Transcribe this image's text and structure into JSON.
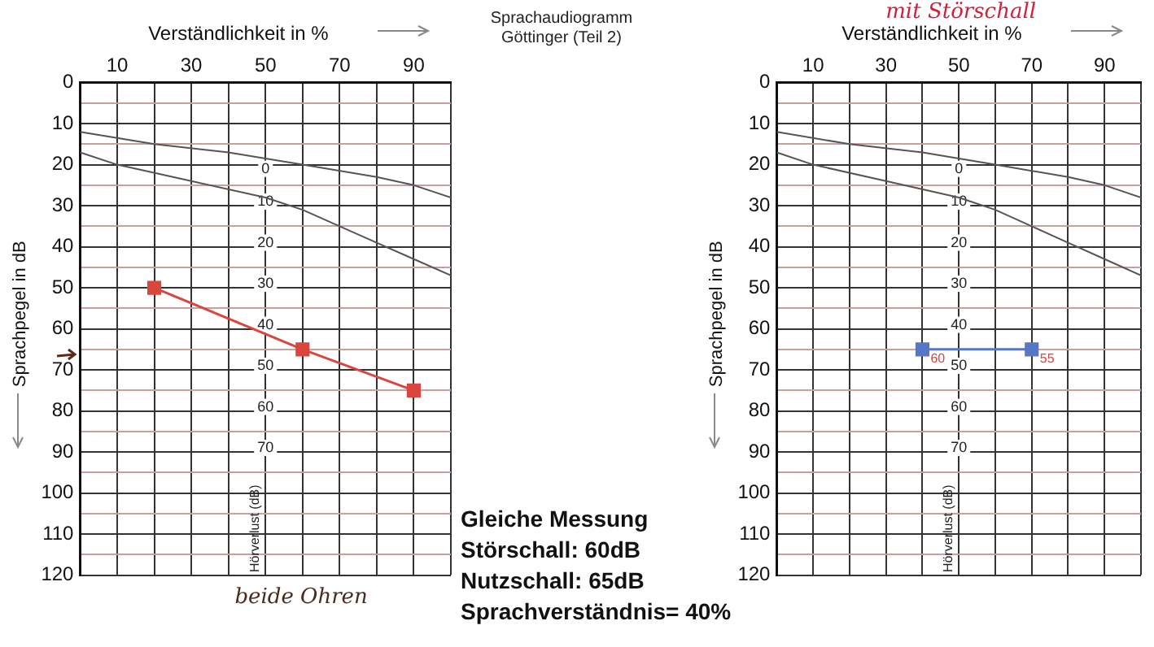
{
  "chart_data": [
    {
      "type": "line",
      "xlabel": "Verständlichkeit in %",
      "ylabel": "Sprachpegel in dB",
      "series": [
        {
          "color": "#555555",
          "marker": "none",
          "x": [
            0,
            20,
            40,
            60,
            80,
            90,
            100
          ],
          "values": [
            12,
            15,
            17,
            20,
            23,
            25,
            28
          ]
        },
        {
          "color": "#555555",
          "marker": "none",
          "x": [
            0,
            10,
            30,
            50,
            60,
            70,
            80,
            90,
            100
          ],
          "values": [
            17,
            20,
            24,
            28,
            31,
            35,
            39,
            43,
            47
          ]
        },
        {
          "color": "#d9463e",
          "x": [
            20,
            60,
            90
          ],
          "values": [
            50,
            65,
            75
          ]
        }
      ],
      "xlim": [
        0,
        100
      ],
      "xticks": [
        {
          "value": 0,
          "label": null
        },
        10,
        {
          "value": 20,
          "label": null
        },
        30,
        {
          "value": 40,
          "label": null
        },
        50,
        {
          "value": 60,
          "label": null
        },
        70,
        {
          "value": 80,
          "label": null
        },
        90,
        {
          "value": 100,
          "label": null
        }
      ],
      "ylim": [
        120,
        0
      ],
      "yticks": [
        0,
        {
          "value": 5,
          "label": null
        },
        10,
        {
          "value": 15,
          "label": null
        },
        20,
        {
          "value": 25,
          "label": null
        },
        30,
        {
          "value": 35,
          "label": null
        },
        40,
        {
          "value": 45,
          "label": null
        },
        50,
        {
          "value": 55,
          "label": null
        },
        60,
        {
          "value": 65,
          "label": null
        },
        70,
        {
          "value": 75,
          "label": null
        },
        80,
        {
          "value": 85,
          "label": null
        },
        90,
        {
          "value": 95,
          "label": null
        },
        100,
        {
          "value": 105,
          "label": null
        },
        110,
        {
          "value": 115,
          "label": null
        },
        120
      ],
      "grid": true,
      "legend": false,
      "marker": "square",
      "line_style": "solid",
      "annotations": [
        {
          "text": "0",
          "x": 50,
          "y": 21
        },
        {
          "text": "10",
          "x": 50,
          "y": 29
        },
        {
          "text": "20",
          "x": 50,
          "y": 39
        },
        {
          "text": "30",
          "x": 50,
          "y": 49
        },
        {
          "text": "40",
          "x": 50,
          "y": 59
        },
        {
          "text": "50",
          "x": 50,
          "y": 69
        },
        {
          "text": "60",
          "x": 50,
          "y": 79
        },
        {
          "text": "70",
          "x": 50,
          "y": 89
        },
        "Hörverlust (dB)",
        "beide Ohren",
        "Sprachaudiogramm\nGöttinger (Teil 2)",
        "Gleiche Messung",
        "Störschall: 60dB",
        "Nutzschall: 65dB",
        "Sprachverständnis= 40%"
      ]
    },
    {
      "type": "line",
      "xlabel": "Verständlichkeit in %",
      "ylabel": "Sprachpegel in dB",
      "series": [
        {
          "color": "#555555",
          "marker": "none",
          "x": [
            0,
            20,
            40,
            60,
            80,
            90,
            100
          ],
          "values": [
            12,
            15,
            17,
            20,
            23,
            25,
            28
          ]
        },
        {
          "color": "#555555",
          "marker": "none",
          "x": [
            0,
            10,
            30,
            50,
            60,
            70,
            80,
            90,
            100
          ],
          "values": [
            17,
            20,
            24,
            28,
            31,
            35,
            39,
            43,
            47
          ]
        },
        {
          "color": "#5876c6",
          "x": [
            40,
            70
          ],
          "values": [
            65,
            65
          ]
        }
      ],
      "xlim": [
        0,
        100
      ],
      "xticks": [
        {
          "value": 0,
          "label": null
        },
        10,
        {
          "value": 20,
          "label": null
        },
        30,
        {
          "value": 40,
          "label": null
        },
        50,
        {
          "value": 60,
          "label": null
        },
        70,
        {
          "value": 80,
          "label": null
        },
        90,
        {
          "value": 100,
          "label": null
        }
      ],
      "ylim": [
        120,
        0
      ],
      "yticks": [
        0,
        {
          "value": 5,
          "label": null
        },
        10,
        {
          "value": 15,
          "label": null
        },
        20,
        {
          "value": 25,
          "label": null
        },
        30,
        {
          "value": 35,
          "label": null
        },
        40,
        {
          "value": 45,
          "label": null
        },
        50,
        {
          "value": 55,
          "label": null
        },
        60,
        {
          "value": 65,
          "label": null
        },
        70,
        {
          "value": 75,
          "label": null
        },
        80,
        {
          "value": 85,
          "label": null
        },
        90,
        {
          "value": 95,
          "label": null
        },
        100,
        {
          "value": 105,
          "label": null
        },
        110,
        {
          "value": 115,
          "label": null
        },
        120
      ],
      "grid": true,
      "legend": false,
      "marker": "square",
      "line_style": "solid",
      "annotations": [
        {
          "text": "0",
          "x": 50,
          "y": 21
        },
        {
          "text": "10",
          "x": 50,
          "y": 29
        },
        {
          "text": "20",
          "x": 50,
          "y": 39
        },
        {
          "text": "30",
          "x": 50,
          "y": 49
        },
        {
          "text": "40",
          "x": 50,
          "y": 59
        },
        {
          "text": "50",
          "x": 50,
          "y": 69
        },
        {
          "text": "60",
          "x": 50,
          "y": 79
        },
        {
          "text": "70",
          "x": 50,
          "y": 89
        },
        {
          "text": "60",
          "x": 40,
          "y": 65
        },
        {
          "text": "55",
          "x": 70,
          "y": 65
        },
        "Hörverlust (dB)",
        "mit Störschall"
      ]
    }
  ]
}
